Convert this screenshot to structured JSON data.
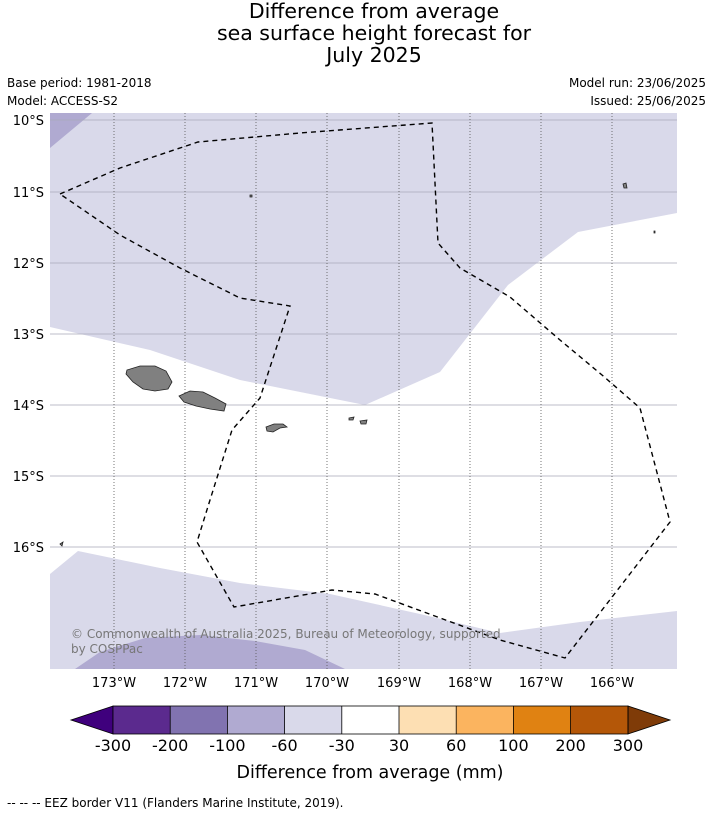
{
  "header": {
    "title_lines": [
      "Difference from average",
      "sea surface height forecast for",
      "July 2025"
    ],
    "base_period": "Base period: 1981-2018",
    "model": "Model: ACCESS-S2",
    "model_run": "Model run: 23/06/2025",
    "issued": "Issued: 25/06/2025"
  },
  "map": {
    "lat_labels": [
      "10°S",
      "11°S",
      "12°S",
      "13°S",
      "14°S",
      "15°S",
      "16°S"
    ],
    "lon_labels": [
      "173°W",
      "172°W",
      "171°W",
      "170°W",
      "169°W",
      "168°W",
      "167°W",
      "166°W"
    ],
    "copyright": [
      "© Commonwealth of Australia 2025, Bureau of Meteorology, supported",
      "by COSPPac"
    ],
    "colors": {
      "band_minus60_minus30": "#d9d9ea",
      "band_minus100_minus60": "#b0aad1",
      "land": "#808080"
    }
  },
  "colorbar": {
    "ticks": [
      "-300",
      "-200",
      "-100",
      "-60",
      "-30",
      "30",
      "60",
      "100",
      "200",
      "300"
    ],
    "colors": [
      "#3f007d",
      "#5b2a8e",
      "#8173b0",
      "#b0aad1",
      "#d9d9ea",
      "#ffffff",
      "#fddfb3",
      "#fbb45f",
      "#e08212",
      "#b45708",
      "#7f3b08"
    ],
    "label": "Difference from average (mm)"
  },
  "footer": {
    "legend": "--  --  -- EEZ border V11 (Flanders Marine Institute, 2019)."
  }
}
